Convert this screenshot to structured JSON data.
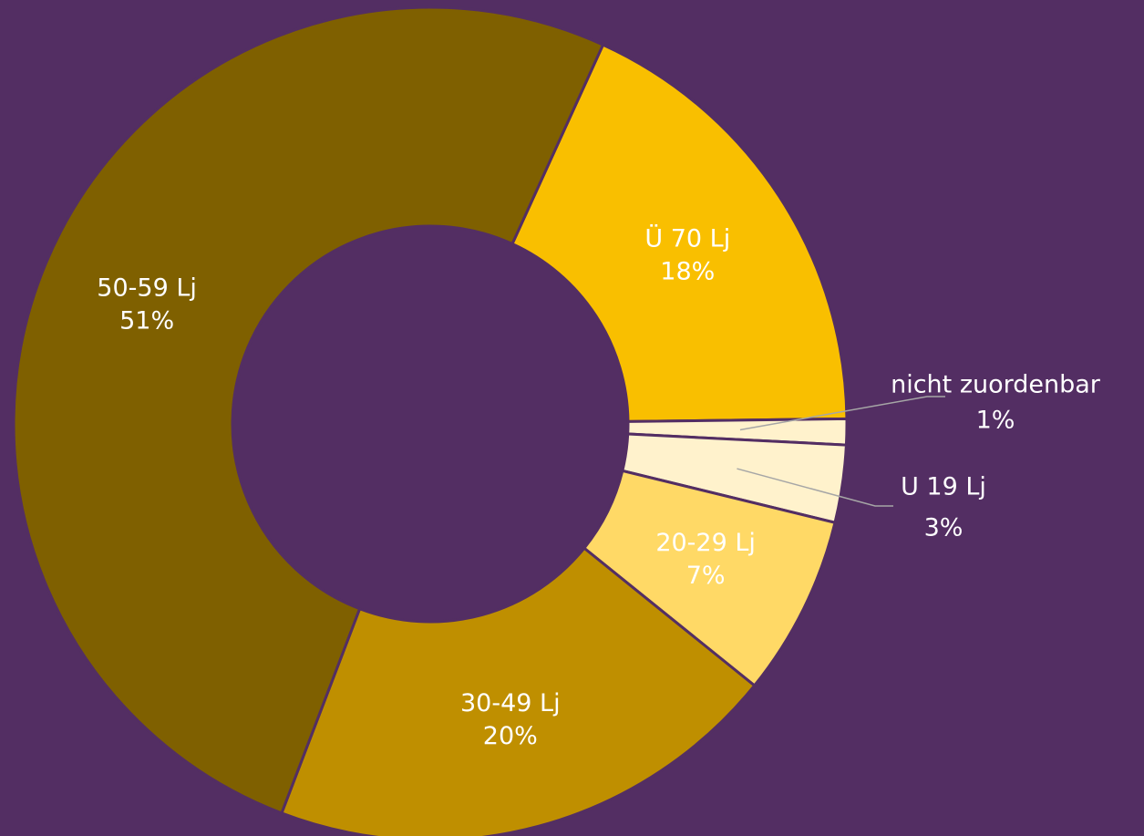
{
  "chart_data": {
    "type": "donut",
    "categories": [
      "Ü 70 Lj",
      "nicht zuordenbar",
      "U 19 Lj",
      "20-29 Lj",
      "30-49 Lj",
      "50-59 Lj"
    ],
    "values": [
      18,
      1,
      3,
      7,
      20,
      51
    ],
    "value_labels": [
      "18%",
      "1%",
      "3%",
      "7%",
      "20%",
      "51%"
    ],
    "colors": [
      "#f9bf00",
      "#fff2cc",
      "#fff2cc",
      "#ffd966",
      "#bf8f00",
      "#7f6000"
    ]
  }
}
